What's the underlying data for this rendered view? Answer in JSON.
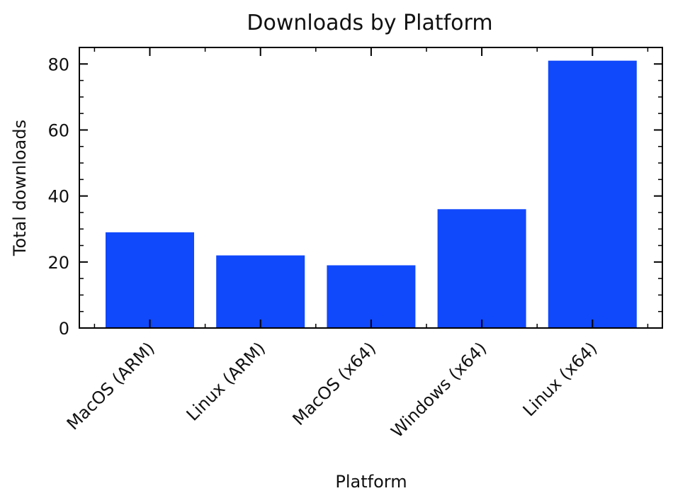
{
  "chart_data": {
    "type": "bar",
    "title": "Downloads by Platform",
    "xlabel": "Platform",
    "ylabel": "Total downloads",
    "categories": [
      "MacOS (ARM)",
      "Linux (ARM)",
      "MacOS (x64)",
      "Windows (x64)",
      "Linux (x64)"
    ],
    "values": [
      29,
      22,
      19,
      36,
      81
    ],
    "ylim": [
      0,
      85
    ],
    "yticks": [
      0,
      20,
      40,
      60,
      80
    ],
    "bar_color": "#1048fc",
    "grid": false,
    "legend": "none"
  }
}
